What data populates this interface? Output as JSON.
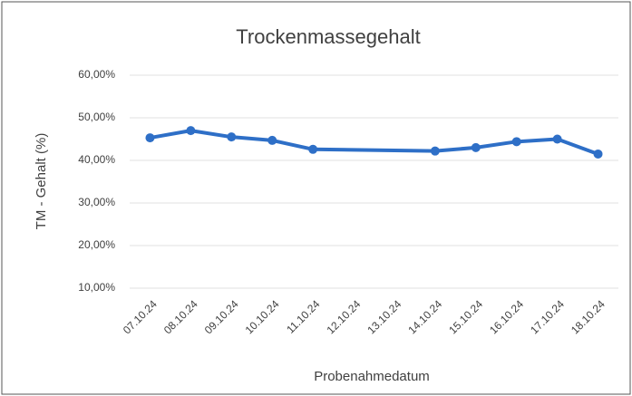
{
  "chart_data": {
    "type": "line",
    "title": "Trockenmassegehalt",
    "x_label": "Probenahmedatum",
    "y_label": "TM - Gehalt (%)",
    "categories": [
      "07.10.24",
      "08.10.24",
      "09.10.24",
      "10.10.24",
      "11.10.24",
      "12.10.24",
      "13.10.24",
      "14.10.24",
      "15.10.24",
      "16.10.24",
      "17.10.24",
      "18.10.24"
    ],
    "series": [
      {
        "name": "TM - Gehalt (%)",
        "color": "#2e6fc7",
        "values": [
          45.3,
          47.0,
          45.5,
          44.7,
          42.6,
          null,
          null,
          42.2,
          43.0,
          44.4,
          45.0,
          41.5
        ]
      }
    ],
    "ylim": [
      10,
      60
    ],
    "yticks": [
      {
        "value": 10,
        "label": "10,00%"
      },
      {
        "value": 20,
        "label": "20,00%"
      },
      {
        "value": 30,
        "label": "30,00%"
      },
      {
        "value": 40,
        "label": "40,00%"
      },
      {
        "value": 50,
        "label": "50,00%"
      },
      {
        "value": 60,
        "label": "60,00%"
      }
    ],
    "grid": true
  }
}
